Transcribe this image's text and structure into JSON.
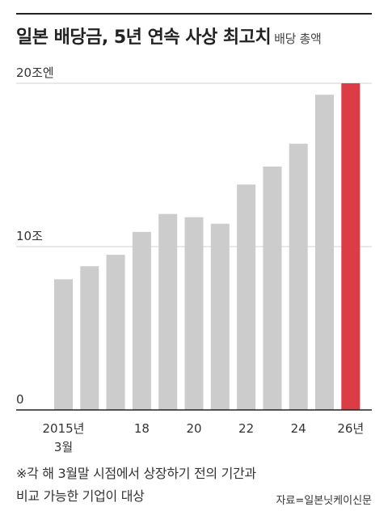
{
  "title": "일본 배당금, 5년 연속 사상 최고치",
  "subtitle": "배당 총액",
  "colors": {
    "bar": "#cccccc",
    "highlight": "#dc3c46",
    "grid": "#d0d0d0",
    "axis": "#222222"
  },
  "chart_data": {
    "type": "bar",
    "title": "일본 배당금, 5년 연속 사상 최고치",
    "subtitle": "배당 총액",
    "categories": [
      "2015",
      "2016",
      "2017",
      "2018",
      "2019",
      "2020",
      "2021",
      "2022",
      "2023",
      "2024",
      "2025",
      "2026"
    ],
    "values": [
      8.0,
      8.8,
      9.5,
      10.9,
      12.0,
      11.8,
      11.4,
      13.8,
      14.9,
      16.3,
      19.3,
      20.0
    ],
    "highlight_index": 11,
    "ylim": [
      0,
      20
    ],
    "y_ticks": [
      0,
      10,
      20
    ],
    "y_tick_labels": [
      "0",
      "10조",
      "20조엔"
    ],
    "x_tick_labels": [
      {
        "index": 0,
        "text": "2015년",
        "text2": "3월"
      },
      {
        "index": 3,
        "text": "18"
      },
      {
        "index": 5,
        "text": "20"
      },
      {
        "index": 7,
        "text": "22"
      },
      {
        "index": 9,
        "text": "24"
      },
      {
        "index": 11,
        "text": "26년"
      }
    ],
    "grid": true
  },
  "note": {
    "line1": "※각 해 3월말 시점에서 상장하기 전의 기간과",
    "line2": "비교 가능한 기업이 대상"
  },
  "source": "자료=일본닛케이신문"
}
